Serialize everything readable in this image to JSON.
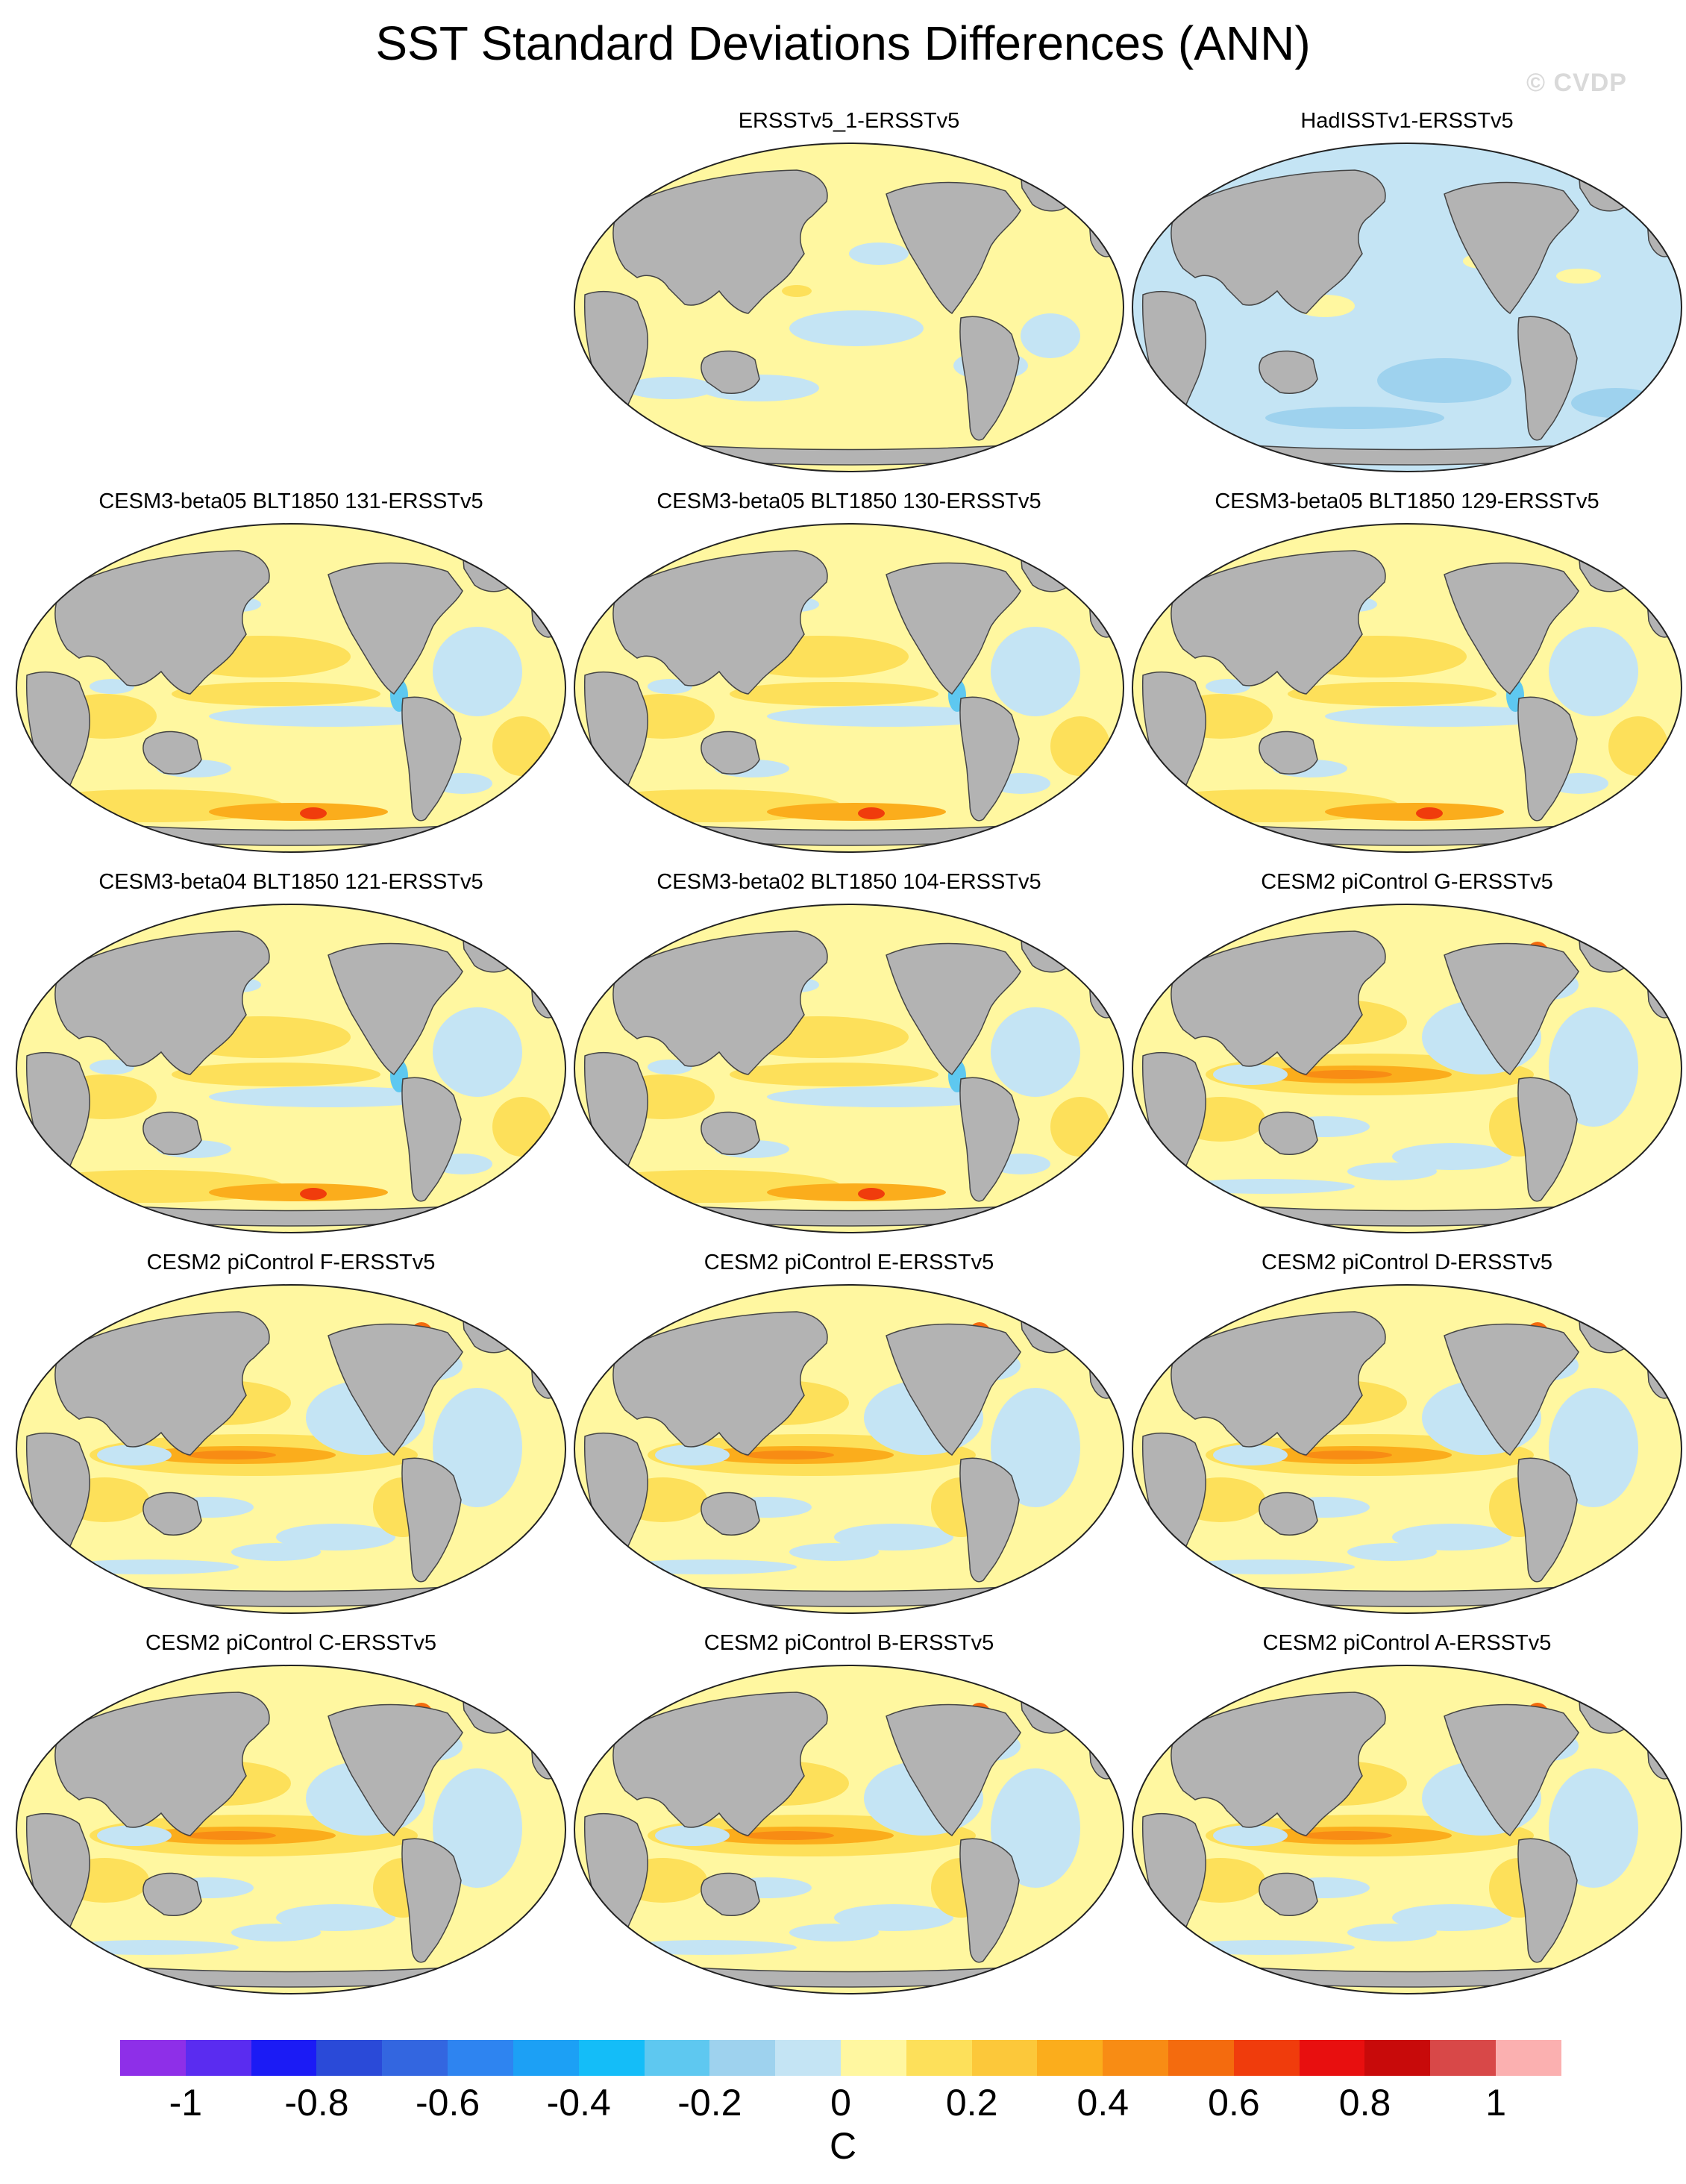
{
  "title": "SST Standard Deviations Differences (ANN)",
  "watermark": "© CVDP",
  "panels": [
    {
      "title": "ERSSTv5_1-ERSSTv5",
      "tone": "obs1"
    },
    {
      "title": "HadISSTv1-ERSSTv5",
      "tone": "obs2"
    },
    {
      "title": "CESM3-beta05 BLT1850 131-ERSSTv5",
      "tone": "warm"
    },
    {
      "title": "CESM3-beta05 BLT1850 130-ERSSTv5",
      "tone": "warm"
    },
    {
      "title": "CESM3-beta05 BLT1850 129-ERSSTv5",
      "tone": "warm"
    },
    {
      "title": "CESM3-beta04 BLT1850 121-ERSSTv5",
      "tone": "warm"
    },
    {
      "title": "CESM3-beta02 BLT1850 104-ERSSTv5",
      "tone": "warm"
    },
    {
      "title": "CESM2 piControl G-ERSSTv5",
      "tone": "enso"
    },
    {
      "title": "CESM2 piControl F-ERSSTv5",
      "tone": "enso"
    },
    {
      "title": "CESM2 piControl E-ERSSTv5",
      "tone": "enso"
    },
    {
      "title": "CESM2 piControl D-ERSSTv5",
      "tone": "enso"
    },
    {
      "title": "CESM2 piControl C-ERSSTv5",
      "tone": "enso"
    },
    {
      "title": "CESM2 piControl B-ERSSTv5",
      "tone": "enso"
    },
    {
      "title": "CESM2 piControl A-ERSSTv5",
      "tone": "enso"
    }
  ],
  "colorbar": {
    "unit": "C",
    "colors": [
      "#8e2fe8",
      "#5a2cf0",
      "#1b1bf5",
      "#2a4ad8",
      "#3366e0",
      "#2e84f0",
      "#1ca0f5",
      "#14bdf8",
      "#5ec8f0",
      "#9ed2ee",
      "#c4e4f4",
      "#fff7a0",
      "#fde05a",
      "#fcc83a",
      "#fbad1c",
      "#f88c14",
      "#f46b0e",
      "#f03c0c",
      "#e80f0f",
      "#c80a0a",
      "#d84848",
      "#fbb0b0"
    ],
    "labels": [
      "-1",
      "-0.8",
      "-0.6",
      "-0.4",
      "-0.2",
      "0",
      "0.2",
      "0.4",
      "0.6",
      "0.8",
      "1"
    ]
  }
}
